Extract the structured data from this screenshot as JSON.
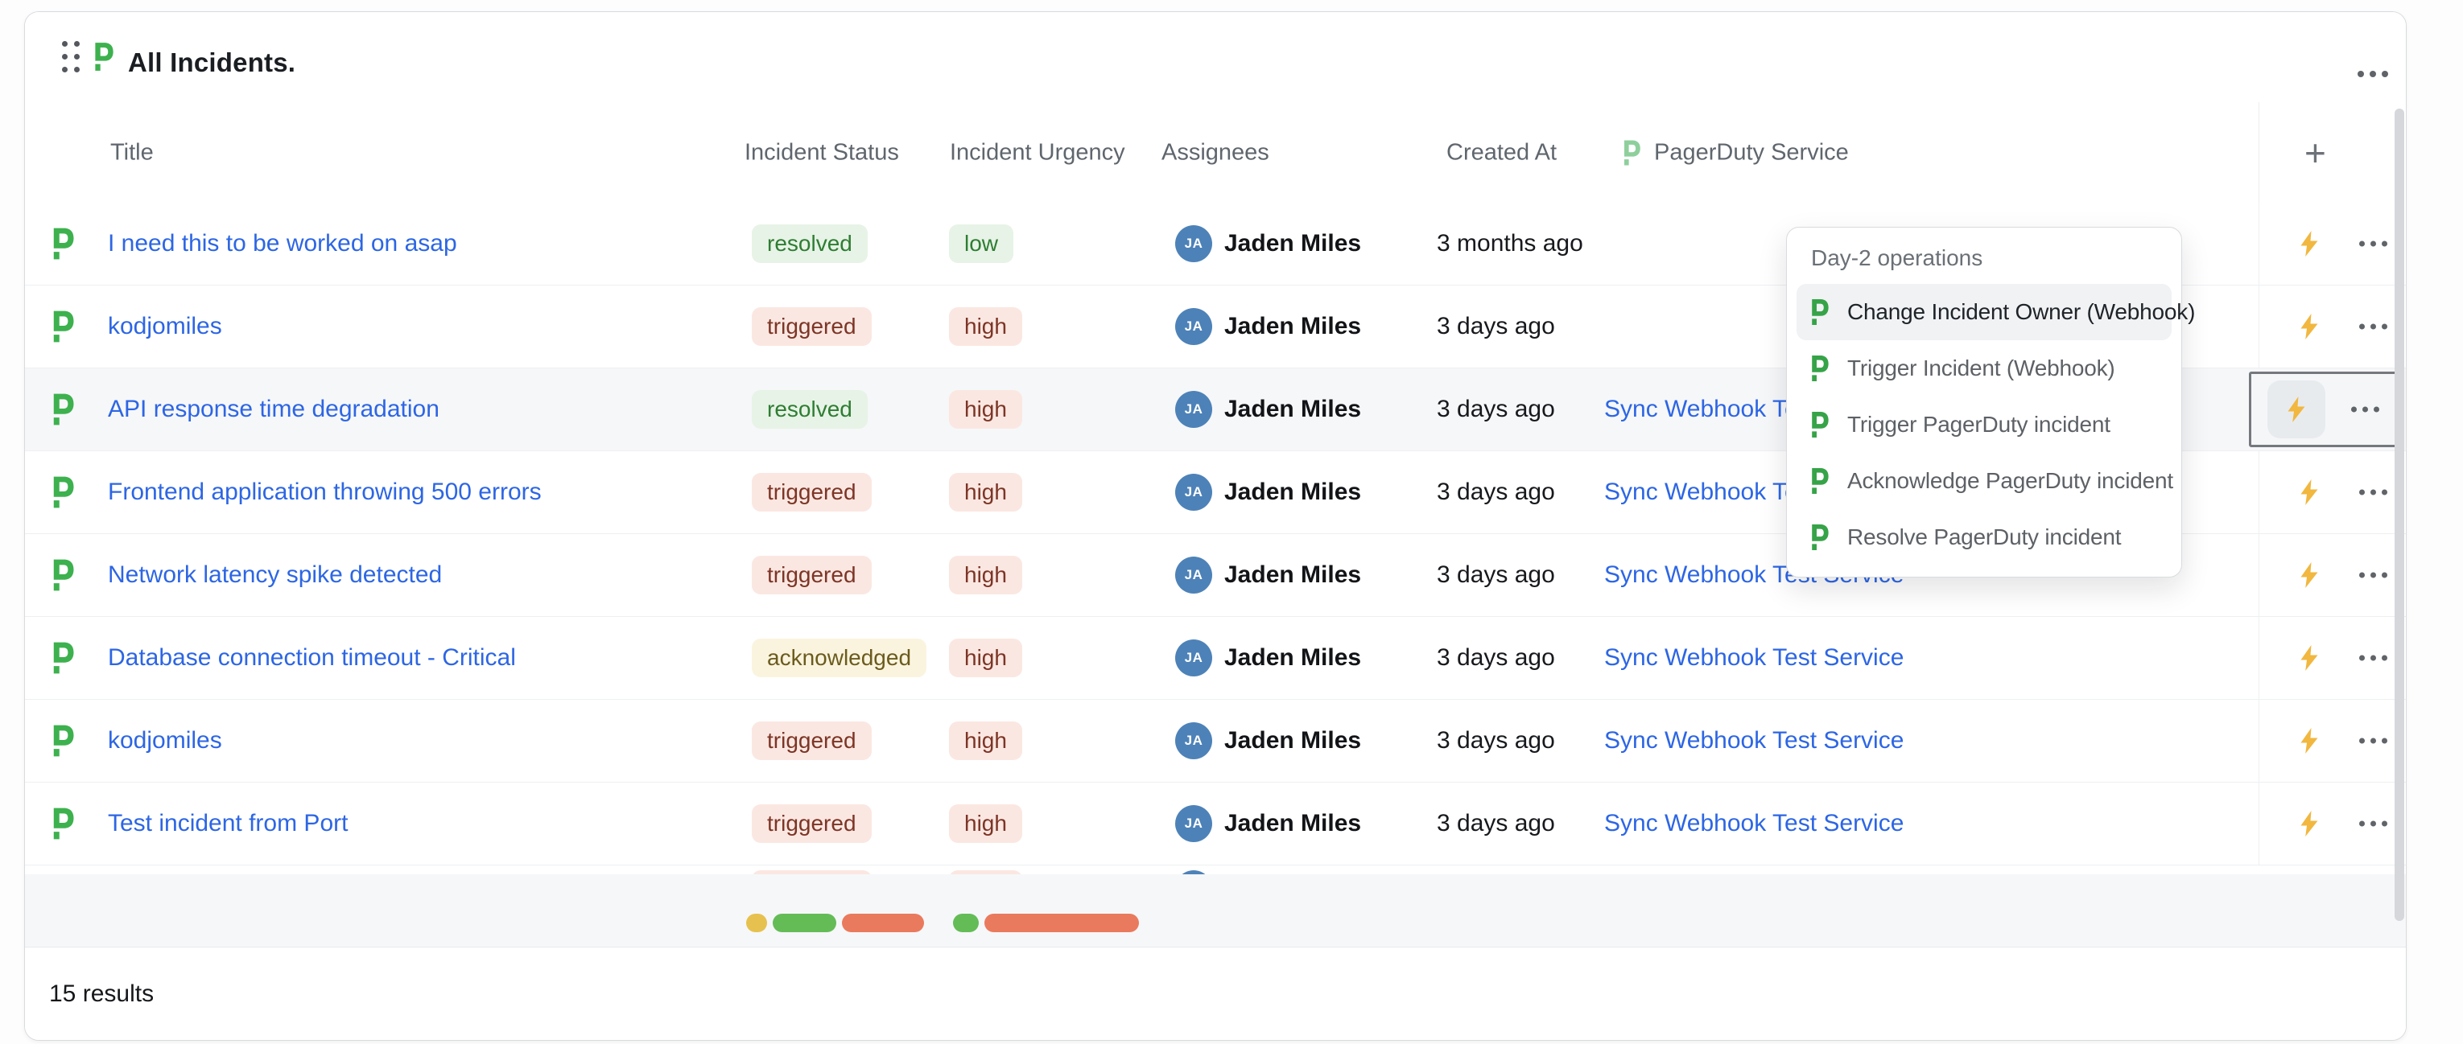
{
  "header": {
    "title": "All Incidents."
  },
  "table": {
    "columns": [
      {
        "label": "Title"
      },
      {
        "label": "Incident Status"
      },
      {
        "label": "Incident Urgency"
      },
      {
        "label": "Assignees"
      },
      {
        "label": "Created At"
      },
      {
        "label": "PagerDuty Service",
        "icon": "pagerduty"
      }
    ],
    "add_column_label": "+",
    "results_text": "15 results",
    "rows": [
      {
        "title": "I need this to be worked on asap",
        "status": "resolved",
        "urgency": "low",
        "assignee": "Jaden Miles",
        "initials": "JA",
        "created": "3 months ago",
        "service": "",
        "highlighted": false,
        "action_focused": false,
        "partial": false
      },
      {
        "title": "kodjomiles",
        "status": "triggered",
        "urgency": "high",
        "assignee": "Jaden Miles",
        "initials": "JA",
        "created": "3 days ago",
        "service": "",
        "highlighted": false,
        "action_focused": false,
        "partial": false
      },
      {
        "title": "API response time degradation",
        "status": "resolved",
        "urgency": "high",
        "assignee": "Jaden Miles",
        "initials": "JA",
        "created": "3 days ago",
        "service": "Sync Webhook Test Service",
        "highlighted": true,
        "action_focused": true,
        "partial": false
      },
      {
        "title": "Frontend application throwing 500 errors",
        "status": "triggered",
        "urgency": "high",
        "assignee": "Jaden Miles",
        "initials": "JA",
        "created": "3 days ago",
        "service": "Sync Webhook Test Service",
        "highlighted": false,
        "action_focused": false,
        "partial": false
      },
      {
        "title": "Network latency spike detected",
        "status": "triggered",
        "urgency": "high",
        "assignee": "Jaden Miles",
        "initials": "JA",
        "created": "3 days ago",
        "service": "Sync Webhook Test Service",
        "highlighted": false,
        "action_focused": false,
        "partial": false
      },
      {
        "title": "Database connection timeout - Critical",
        "status": "acknowledged",
        "urgency": "high",
        "assignee": "Jaden Miles",
        "initials": "JA",
        "created": "3 days ago",
        "service": "Sync Webhook Test Service",
        "highlighted": false,
        "action_focused": false,
        "partial": false
      },
      {
        "title": "kodjomiles",
        "status": "triggered",
        "urgency": "high",
        "assignee": "Jaden Miles",
        "initials": "JA",
        "created": "3 days ago",
        "service": "Sync Webhook Test Service",
        "highlighted": false,
        "action_focused": false,
        "partial": false
      },
      {
        "title": "Test incident from Port",
        "status": "triggered",
        "urgency": "high",
        "assignee": "Jaden Miles",
        "initials": "JA",
        "created": "3 days ago",
        "service": "Sync Webhook Test Service",
        "highlighted": false,
        "action_focused": false,
        "partial": false
      },
      {
        "title": "",
        "status": "triggered",
        "urgency": "high",
        "assignee": "Jaden Miles",
        "initials": "JA",
        "created": "",
        "service": "",
        "highlighted": false,
        "action_focused": false,
        "partial": true
      }
    ]
  },
  "badges": {
    "resolved": {
      "bg": "#e7f3e6",
      "text": "#2e7d33"
    },
    "triggered": {
      "bg": "#fbe7e1",
      "text": "#7c3526"
    },
    "acknowledged": {
      "bg": "#faf4df",
      "text": "#6b5b1d"
    },
    "low": {
      "bg": "#e7f3e6",
      "text": "#2e7d33"
    },
    "high": {
      "bg": "#fbe7e1",
      "text": "#7c3526"
    }
  },
  "context_menu": {
    "section_label": "Day-2 operations",
    "items": [
      {
        "label": "Change Incident Owner (Webhook)",
        "highlighted": true
      },
      {
        "label": "Trigger Incident (Webhook)",
        "highlighted": false
      },
      {
        "label": "Trigger PagerDuty incident",
        "highlighted": false
      },
      {
        "label": "Acknowledge PagerDuty incident",
        "highlighted": false
      },
      {
        "label": "Resolve PagerDuty incident",
        "highlighted": false
      }
    ]
  },
  "summary_bars": {
    "incident_status": [
      {
        "label": "acknowledged",
        "color": "#e7c14f",
        "width": 26
      },
      {
        "label": "resolved",
        "color": "#64bc57",
        "width": 79
      },
      {
        "label": "triggered",
        "color": "#ea7a5d",
        "width": 102
      }
    ],
    "incident_urgency": [
      {
        "label": "low",
        "color": "#64bc57",
        "width": 32
      },
      {
        "label": "high",
        "color": "#ea7a5d",
        "width": 192
      }
    ]
  },
  "colors": {
    "link": "#2d66e4",
    "pagerduty_green": "#3db14e",
    "pagerduty_green_light": "#8ecf9c",
    "lightning": "#f1b73f",
    "avatar_bg": "#4d82b8"
  }
}
